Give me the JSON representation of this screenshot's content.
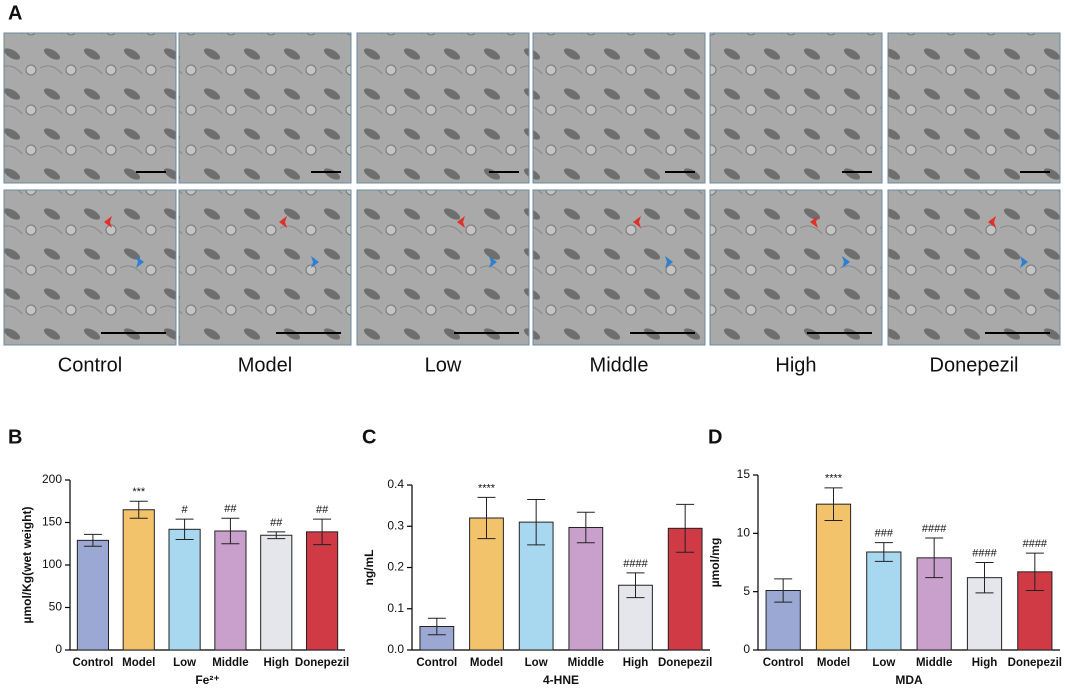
{
  "panel_labels": [
    "A",
    "B",
    "C",
    "D"
  ],
  "micrograph_labels": [
    "Control",
    "Model",
    "Low",
    "Middle",
    "High",
    "Donepezil"
  ],
  "chart_data": [
    {
      "type": "bar",
      "ylabel": "µmol/Kg(wet weight)",
      "xlabel": "Fe²⁺",
      "categories": [
        "Control",
        "Model",
        "Low",
        "Middle",
        "High",
        "Donepezil"
      ],
      "values": [
        129,
        165,
        142,
        140,
        135,
        139
      ],
      "errors": [
        7,
        10,
        12,
        15,
        4,
        15
      ],
      "annotations": [
        null,
        "***",
        "#",
        "##",
        "##",
        "##"
      ],
      "colors": [
        "#9ba8d4",
        "#f2c36b",
        "#a8d8f0",
        "#c9a0cc",
        "#e4e6ec",
        "#cf3a45"
      ],
      "ylim": [
        0,
        200
      ],
      "yticks": [
        0,
        50,
        100,
        150,
        200
      ]
    },
    {
      "type": "bar",
      "ylabel": "ng/mL",
      "xlabel": "4-HNE",
      "categories": [
        "Control",
        "Model",
        "Low",
        "Middle",
        "High",
        "Donepezil"
      ],
      "values": [
        0.057,
        0.32,
        0.31,
        0.297,
        0.157,
        0.295
      ],
      "errors": [
        0.02,
        0.05,
        0.055,
        0.037,
        0.03,
        0.058
      ],
      "annotations": [
        null,
        "****",
        null,
        null,
        "####",
        null
      ],
      "colors": [
        "#9ba8d4",
        "#f2c36b",
        "#a8d8f0",
        "#c9a0cc",
        "#e4e6ec",
        "#cf3a45"
      ],
      "ylim": [
        0,
        0.4
      ],
      "yticks": [
        {
          "value": 0,
          "label": "0.0"
        },
        0.1,
        0.2,
        0.3,
        0.4
      ]
    },
    {
      "type": "bar",
      "ylabel": "µmol/mg",
      "xlabel": "MDA",
      "categories": [
        "Control",
        "Model",
        "Low",
        "Middle",
        "High",
        "Donepezil"
      ],
      "values": [
        5.1,
        12.5,
        8.4,
        7.9,
        6.2,
        6.7
      ],
      "errors": [
        1.0,
        1.4,
        0.8,
        1.7,
        1.3,
        1.6
      ],
      "annotations": [
        null,
        "****",
        "###",
        "####",
        "####",
        "####"
      ],
      "colors": [
        "#9ba8d4",
        "#f2c36b",
        "#a8d8f0",
        "#c9a0cc",
        "#e4e6ec",
        "#cf3a45"
      ],
      "ylim": [
        0,
        15
      ],
      "yticks": [
        0,
        5,
        10,
        15
      ]
    }
  ]
}
